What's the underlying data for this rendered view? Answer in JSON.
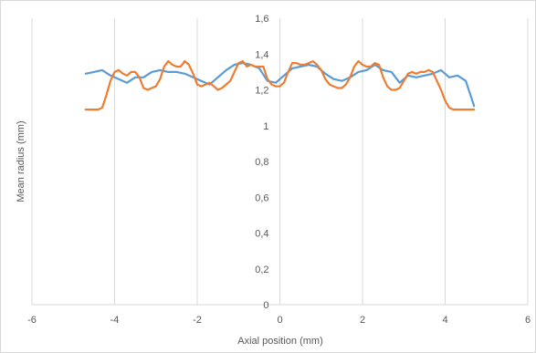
{
  "chart_data": {
    "type": "line",
    "title": "",
    "xlabel": "Axial position (mm)",
    "ylabel": "Mean radius (mm)",
    "xlim": [
      -6,
      6
    ],
    "ylim": [
      0,
      1.6
    ],
    "x_ticks": [
      "-6",
      "-4",
      "-2",
      "0",
      "2",
      "4",
      "6"
    ],
    "y_ticks": [
      "0",
      "0,2",
      "0,4",
      "0,6",
      "0,8",
      "1",
      "1,2",
      "1,4",
      "1,6"
    ],
    "grid": "vertical-major",
    "legend": "none",
    "series": [
      {
        "color": "#5b9bd5",
        "x": [
          -4.7,
          -4.5,
          -4.3,
          -4.1,
          -3.9,
          -3.7,
          -3.5,
          -3.3,
          -3.1,
          -2.9,
          -2.7,
          -2.5,
          -2.3,
          -2.1,
          -1.9,
          -1.7,
          -1.5,
          -1.3,
          -1.1,
          -0.9,
          -0.7,
          -0.5,
          -0.3,
          -0.1,
          0.1,
          0.3,
          0.5,
          0.7,
          0.9,
          1.1,
          1.3,
          1.5,
          1.7,
          1.9,
          2.1,
          2.3,
          2.5,
          2.7,
          2.9,
          3.1,
          3.3,
          3.5,
          3.7,
          3.9,
          4.1,
          4.3,
          4.5,
          4.7
        ],
        "y": [
          1.29,
          1.3,
          1.31,
          1.28,
          1.26,
          1.24,
          1.27,
          1.27,
          1.3,
          1.31,
          1.3,
          1.3,
          1.29,
          1.27,
          1.25,
          1.23,
          1.27,
          1.31,
          1.34,
          1.35,
          1.34,
          1.32,
          1.25,
          1.24,
          1.28,
          1.32,
          1.33,
          1.34,
          1.33,
          1.29,
          1.26,
          1.25,
          1.27,
          1.3,
          1.31,
          1.34,
          1.31,
          1.3,
          1.24,
          1.28,
          1.27,
          1.28,
          1.29,
          1.31,
          1.27,
          1.28,
          1.25,
          1.11
        ]
      },
      {
        "color": "#ed7d31",
        "x": [
          -4.7,
          -4.5,
          -4.4,
          -4.3,
          -4.2,
          -4.1,
          -4.0,
          -3.9,
          -3.8,
          -3.7,
          -3.6,
          -3.5,
          -3.4,
          -3.3,
          -3.2,
          -3.1,
          -3.0,
          -2.9,
          -2.8,
          -2.7,
          -2.6,
          -2.5,
          -2.4,
          -2.3,
          -2.2,
          -2.1,
          -2.0,
          -1.9,
          -1.8,
          -1.7,
          -1.6,
          -1.5,
          -1.4,
          -1.3,
          -1.2,
          -1.1,
          -1.0,
          -0.9,
          -0.8,
          -0.7,
          -0.6,
          -0.5,
          -0.4,
          -0.3,
          -0.2,
          -0.1,
          0.0,
          0.1,
          0.2,
          0.3,
          0.4,
          0.5,
          0.6,
          0.7,
          0.8,
          0.9,
          1.0,
          1.1,
          1.2,
          1.3,
          1.4,
          1.5,
          1.6,
          1.7,
          1.8,
          1.9,
          2.0,
          2.1,
          2.2,
          2.3,
          2.4,
          2.5,
          2.6,
          2.7,
          2.8,
          2.9,
          3.0,
          3.1,
          3.2,
          3.3,
          3.4,
          3.5,
          3.6,
          3.7,
          3.8,
          3.9,
          4.0,
          4.1,
          4.2,
          4.3,
          4.4,
          4.5,
          4.6,
          4.7
        ],
        "y": [
          1.09,
          1.09,
          1.09,
          1.1,
          1.17,
          1.25,
          1.3,
          1.31,
          1.29,
          1.28,
          1.3,
          1.3,
          1.27,
          1.21,
          1.2,
          1.21,
          1.22,
          1.26,
          1.33,
          1.36,
          1.34,
          1.33,
          1.33,
          1.36,
          1.34,
          1.29,
          1.23,
          1.22,
          1.23,
          1.24,
          1.22,
          1.2,
          1.21,
          1.23,
          1.25,
          1.3,
          1.35,
          1.36,
          1.33,
          1.34,
          1.33,
          1.33,
          1.33,
          1.26,
          1.23,
          1.22,
          1.22,
          1.24,
          1.3,
          1.35,
          1.35,
          1.34,
          1.34,
          1.35,
          1.36,
          1.34,
          1.31,
          1.26,
          1.23,
          1.22,
          1.21,
          1.21,
          1.23,
          1.27,
          1.33,
          1.36,
          1.34,
          1.33,
          1.33,
          1.35,
          1.34,
          1.27,
          1.22,
          1.2,
          1.2,
          1.21,
          1.25,
          1.29,
          1.3,
          1.29,
          1.3,
          1.3,
          1.31,
          1.3,
          1.25,
          1.2,
          1.14,
          1.1,
          1.09,
          1.09,
          1.09,
          1.09,
          1.09,
          1.09
        ]
      }
    ]
  }
}
